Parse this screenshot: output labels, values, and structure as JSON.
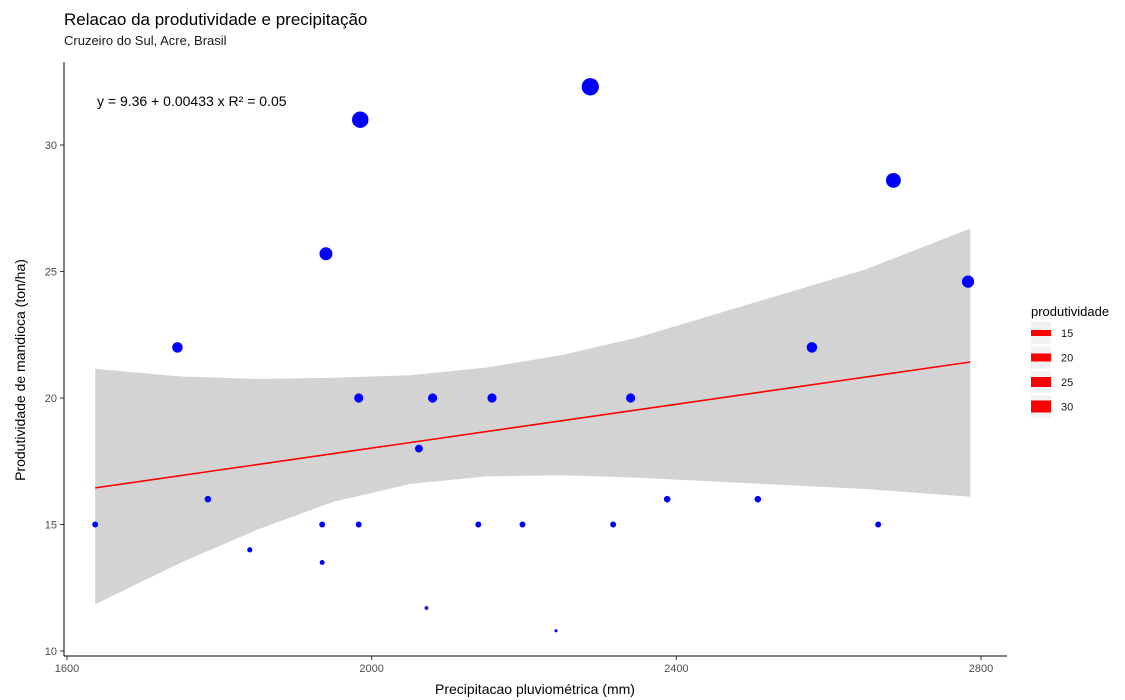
{
  "chart_data": {
    "type": "scatter",
    "title": "Relacao da produtividade e precipitação",
    "subtitle": "Cruzeiro do Sul, Acre, Brasil",
    "xlabel": "Precipitacao pluviométrica (mm)",
    "ylabel": "Produtividade de mandioca (ton/ha)",
    "xlim": [
      1600,
      2800
    ],
    "ylim": [
      10,
      32.5
    ],
    "x_ticks": [
      1600,
      2000,
      2400,
      2800
    ],
    "y_ticks": [
      10,
      15,
      20,
      25,
      30
    ],
    "grid": false,
    "equation_text": "y = 9.36 + 0.00433 x     R² = 0.05",
    "regression": {
      "intercept": 9.36,
      "slope": 0.00433,
      "r_squared": 0.05,
      "x_range": [
        1637,
        2786
      ],
      "color": "#ff0000"
    },
    "confidence_band": {
      "color": "#d3d3d3",
      "x": [
        1637,
        1750,
        1850,
        1950,
        2050,
        2150,
        2250,
        2350,
        2450,
        2550,
        2650,
        2786
      ],
      "lower": [
        11.85,
        13.5,
        14.8,
        15.9,
        16.6,
        16.9,
        16.95,
        16.85,
        16.7,
        16.55,
        16.4,
        16.1
      ],
      "upper": [
        21.15,
        20.85,
        20.75,
        20.8,
        20.9,
        21.2,
        21.7,
        22.4,
        23.3,
        24.2,
        25.1,
        26.7
      ]
    },
    "point_color": "#0000ff",
    "points": [
      {
        "x": 1637,
        "y": 15.0
      },
      {
        "x": 1745,
        "y": 22.0
      },
      {
        "x": 1785,
        "y": 16.0
      },
      {
        "x": 1840,
        "y": 14.0
      },
      {
        "x": 1935,
        "y": 15.0
      },
      {
        "x": 1935,
        "y": 13.5
      },
      {
        "x": 1940,
        "y": 25.7
      },
      {
        "x": 1983,
        "y": 15.0
      },
      {
        "x": 1983,
        "y": 20.0
      },
      {
        "x": 1985,
        "y": 31.0
      },
      {
        "x": 2062,
        "y": 18.0
      },
      {
        "x": 2072,
        "y": 11.7
      },
      {
        "x": 2080,
        "y": 20.0
      },
      {
        "x": 2140,
        "y": 15.0
      },
      {
        "x": 2158,
        "y": 20.0
      },
      {
        "x": 2198,
        "y": 15.0
      },
      {
        "x": 2242,
        "y": 10.8
      },
      {
        "x": 2287,
        "y": 32.3
      },
      {
        "x": 2317,
        "y": 15.0
      },
      {
        "x": 2340,
        "y": 20.0
      },
      {
        "x": 2388,
        "y": 16.0
      },
      {
        "x": 2507,
        "y": 16.0
      },
      {
        "x": 2578,
        "y": 22.0
      },
      {
        "x": 2665,
        "y": 15.0
      },
      {
        "x": 2685,
        "y": 28.6
      },
      {
        "x": 2783,
        "y": 24.6
      }
    ],
    "legend": {
      "title": "produtividade",
      "placement": "right",
      "color": "#ff0000",
      "entries": [
        {
          "label": "15",
          "value": 15
        },
        {
          "label": "20",
          "value": 20
        },
        {
          "label": "25",
          "value": 25
        },
        {
          "label": "30",
          "value": 30
        }
      ]
    }
  }
}
